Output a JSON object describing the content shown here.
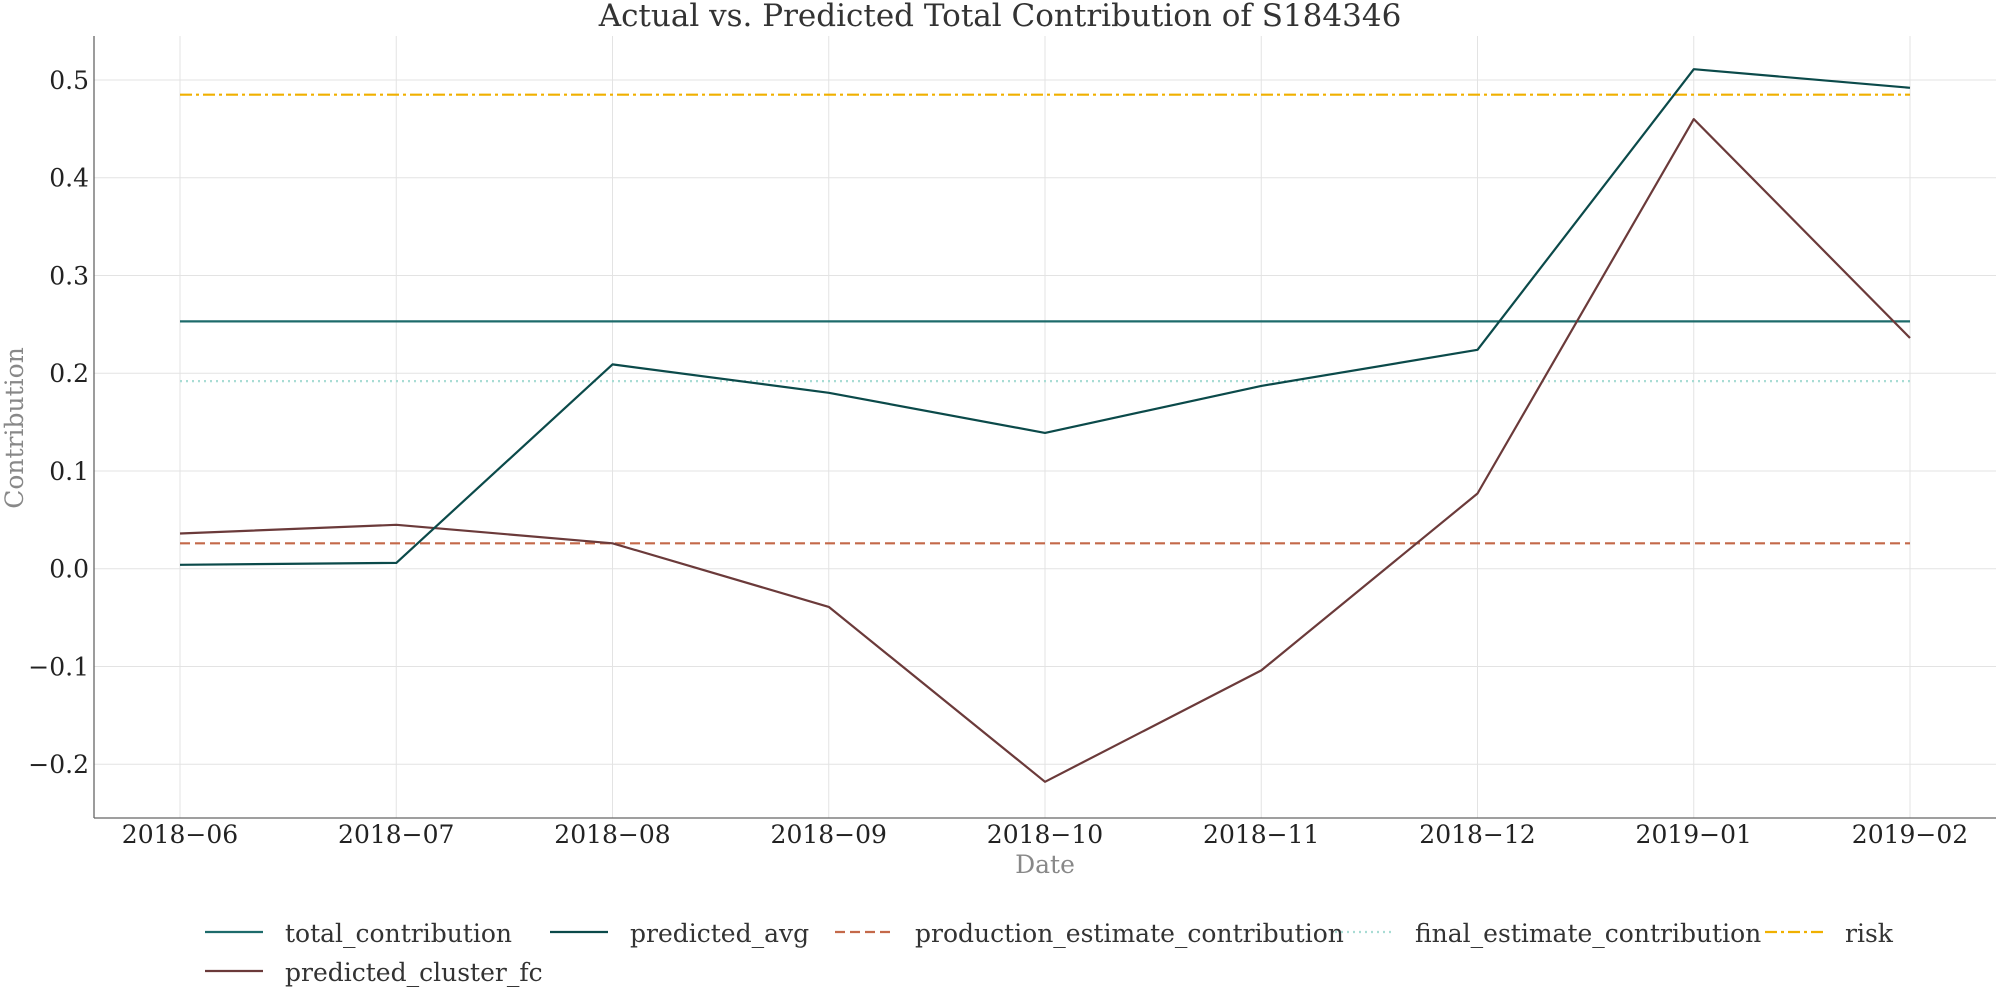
{
  "chart_data": {
    "type": "line",
    "title": "Actual vs. Predicted Total Contribution of S184346",
    "xlabel": "Date",
    "ylabel": "Contribution",
    "x": [
      "2018−06",
      "2018−07",
      "2018−08",
      "2018−09",
      "2018−10",
      "2018−11",
      "2018−12",
      "2019−01",
      "2019−02"
    ],
    "ylim": [
      -0.255,
      0.545
    ],
    "yticks": [
      -0.2,
      -0.1,
      0.0,
      0.1,
      0.2,
      0.3,
      0.4,
      0.5
    ],
    "ytick_labels": [
      "−0.2",
      "−0.1",
      "0.0",
      "0.1",
      "0.2",
      "0.3",
      "0.4",
      "0.5"
    ],
    "grid": true,
    "legend_position": "bottom",
    "series": [
      {
        "name": "total_contribution",
        "color": "#1d6b6b",
        "dash": "solid",
        "values": [
          0.253,
          0.253,
          0.253,
          0.253,
          0.253,
          0.253,
          0.253,
          0.253,
          0.253
        ]
      },
      {
        "name": "predicted_avg",
        "color": "#0b4a4a",
        "dash": "solid",
        "values": [
          0.004,
          0.006,
          0.209,
          0.18,
          0.139,
          0.187,
          0.224,
          0.511,
          0.492
        ]
      },
      {
        "name": "production_estimate_contribution",
        "color": "#c4694a",
        "dash": "dashed",
        "values": [
          0.026,
          0.026,
          0.026,
          0.026,
          0.026,
          0.026,
          0.026,
          0.026,
          0.026
        ]
      },
      {
        "name": "final_estimate_contribution",
        "color": "#a8dcd4",
        "dash": "dotted",
        "values": [
          0.192,
          0.192,
          0.192,
          0.192,
          0.192,
          0.192,
          0.192,
          0.192,
          0.192
        ]
      },
      {
        "name": "risk",
        "color": "#f0b000",
        "dash": "dashdot",
        "values": [
          0.485,
          0.485,
          0.485,
          0.485,
          0.485,
          0.485,
          0.485,
          0.485,
          0.485
        ]
      },
      {
        "name": "predicted_cluster_fc",
        "color": "#6b3a3a",
        "dash": "solid",
        "values": [
          0.036,
          0.045,
          0.026,
          -0.039,
          -0.218,
          -0.104,
          0.077,
          0.46,
          0.236
        ]
      }
    ]
  }
}
